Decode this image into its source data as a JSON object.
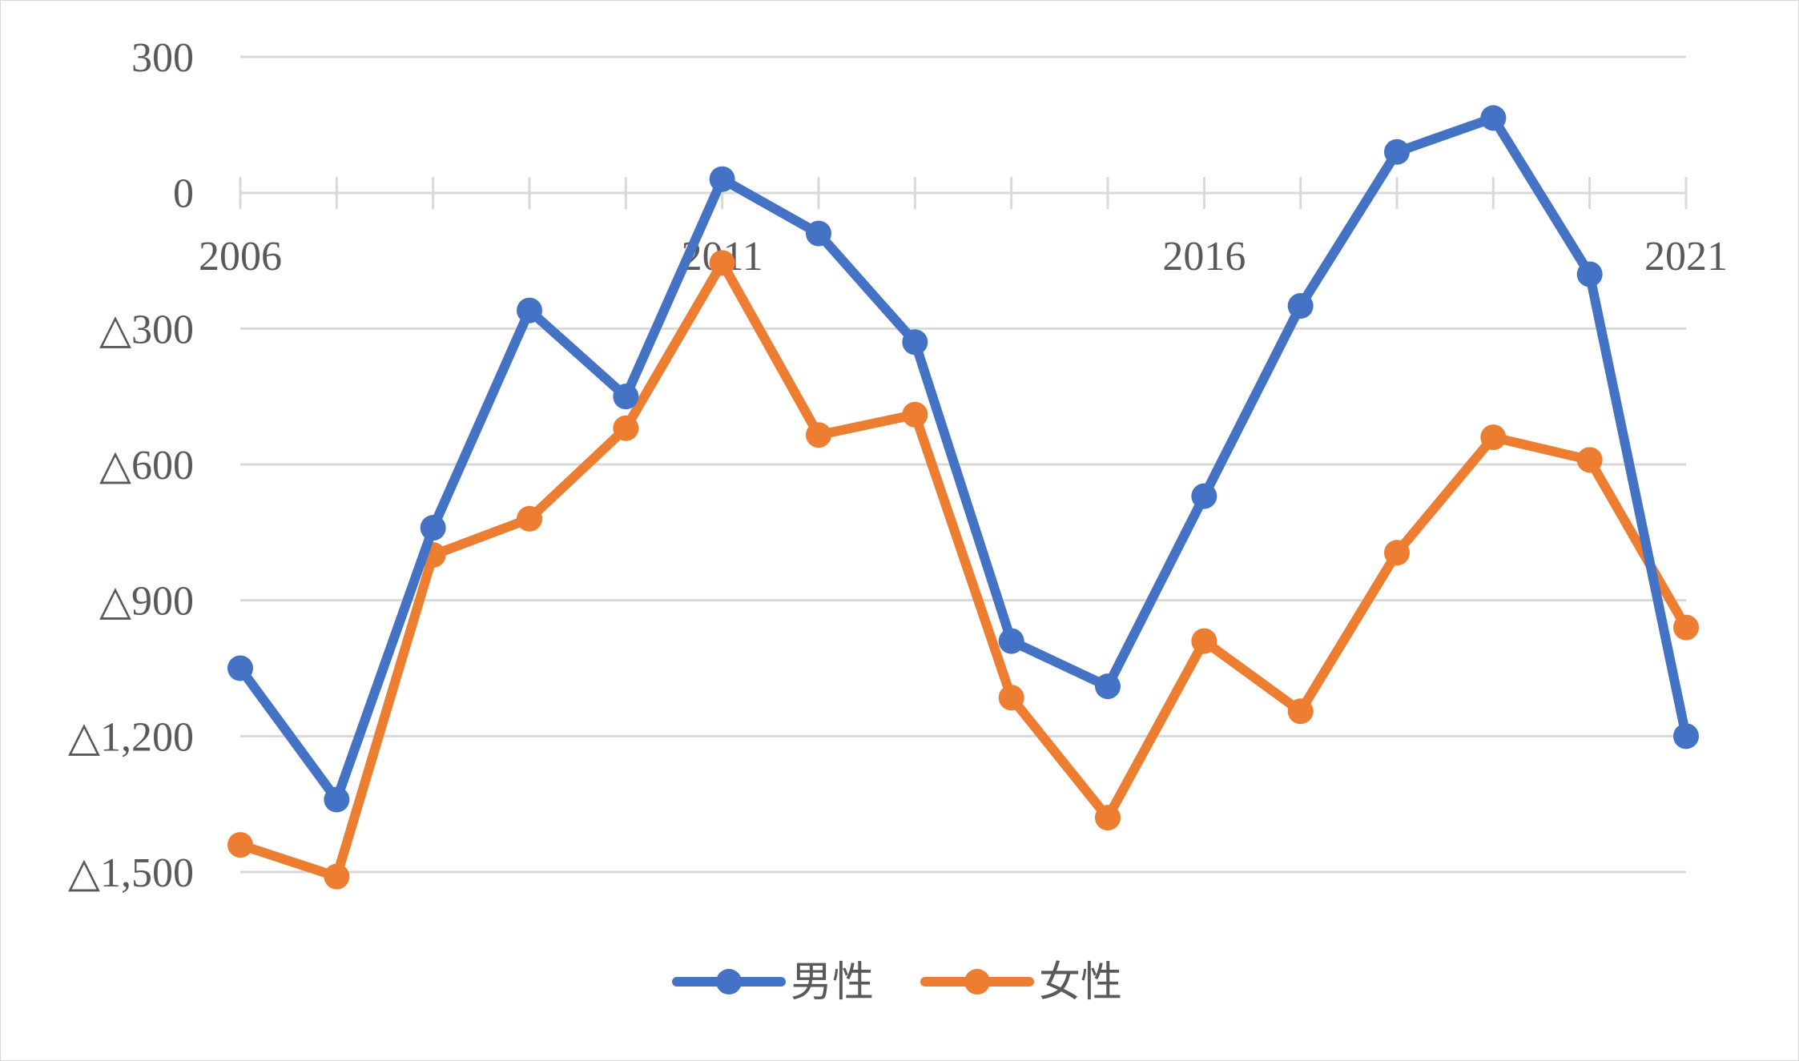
{
  "chart_data": {
    "type": "line",
    "title": "",
    "xlabel": "",
    "ylabel": "",
    "x": [
      2006,
      2007,
      2008,
      2009,
      2010,
      2011,
      2012,
      2013,
      2014,
      2015,
      2016,
      2017,
      2018,
      2019,
      2020,
      2021
    ],
    "x_tick_labels": [
      "2006",
      "2011",
      "2016",
      "2021"
    ],
    "y_tick_values": [
      300,
      0,
      -300,
      -600,
      -900,
      -1200,
      -1500
    ],
    "y_tick_labels": [
      "300",
      "0",
      "△300",
      "△600",
      "△900",
      "△1,200",
      "△1,500"
    ],
    "ylim": [
      -1500,
      300
    ],
    "grid": true,
    "legend_position": "bottom",
    "series": [
      {
        "name": "男性",
        "color": "#4472C4",
        "values": [
          -1050,
          -1340,
          -740,
          -260,
          -450,
          30,
          -90,
          -330,
          -990,
          -1090,
          -670,
          -250,
          90,
          165,
          -180,
          -1200
        ]
      },
      {
        "name": "女性",
        "color": "#ED7D31",
        "values": [
          -1440,
          -1510,
          -800,
          -720,
          -520,
          -155,
          -535,
          -490,
          -1115,
          -1380,
          -990,
          -1145,
          -795,
          -540,
          -590,
          -960
        ]
      }
    ]
  }
}
